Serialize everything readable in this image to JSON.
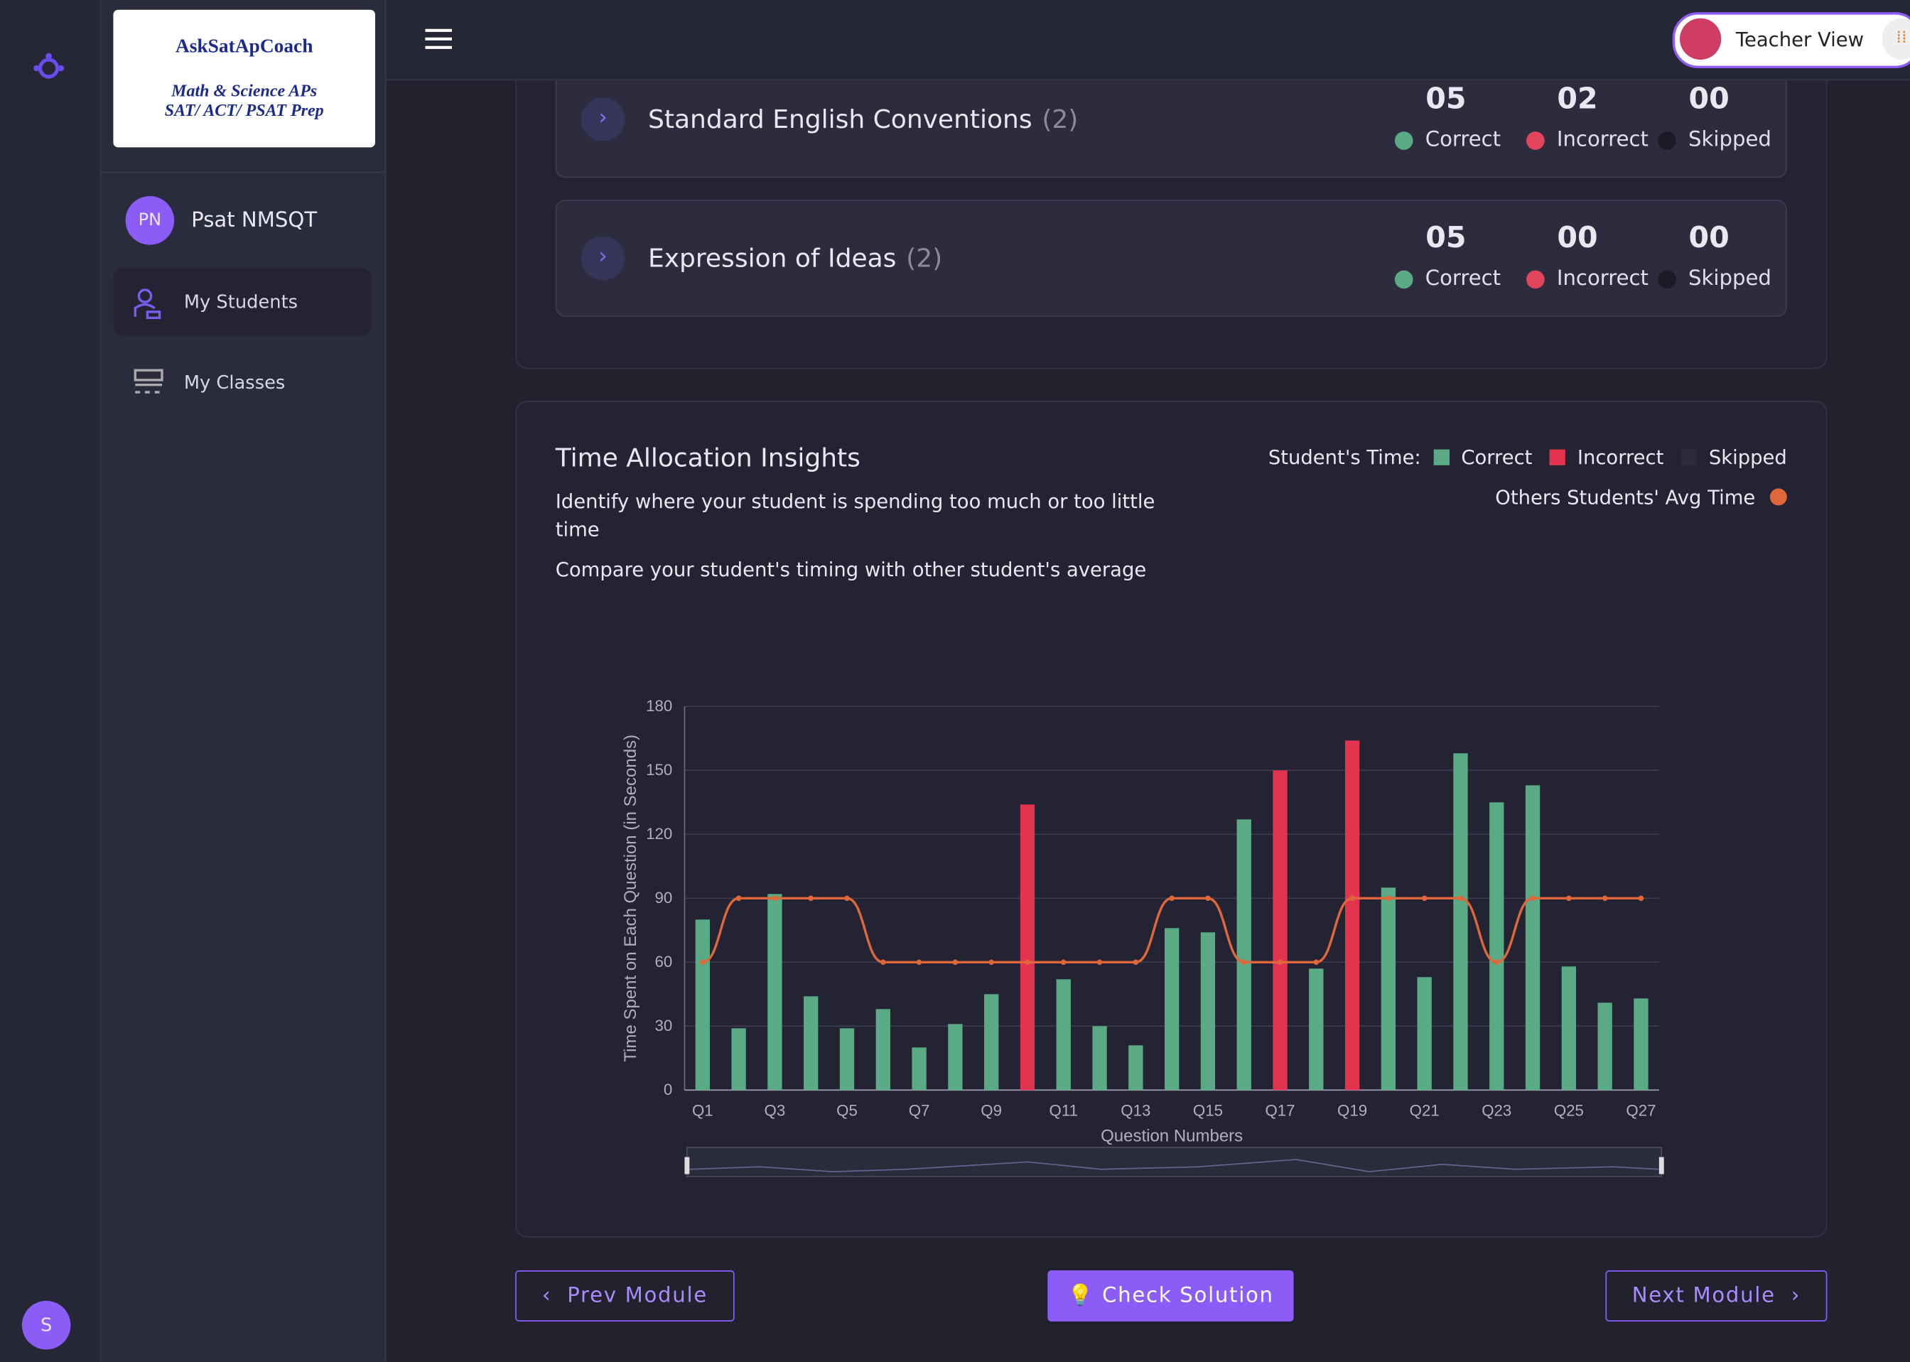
{
  "sidebar": {
    "logo": {
      "title": "AskSatApCoach",
      "line1": "Math & Science APs",
      "line2": "SAT/ ACT/ PSAT Prep"
    },
    "profile": {
      "initials": "PN",
      "name": "Psat NMSQT"
    },
    "menu": [
      "My Students",
      "My Classes"
    ],
    "user_initial": "S"
  },
  "header": {
    "view": "Teacher View"
  },
  "stat_labels": {
    "correct": "Correct",
    "incorrect": "Incorrect",
    "skipped": "Skipped"
  },
  "sections": [
    {
      "title": "Standard English Conventions",
      "count": "(2)",
      "correct": "05",
      "incorrect": "02",
      "skipped": "00"
    },
    {
      "title": "Expression of Ideas",
      "count": "(2)",
      "correct": "05",
      "incorrect": "00",
      "skipped": "00"
    }
  ],
  "insights": {
    "title": "Time Allocation Insights",
    "desc1": "Identify where your student is spending too much or too little time",
    "desc2": "Compare your student's timing with other student's average"
  },
  "chart_data": {
    "type": "bar",
    "legend_title": "Student's Time:",
    "x_label": "Question Numbers",
    "y_label": "Time Spent on Each Question (in Seconds)",
    "categories": [
      "Q1",
      null,
      "Q3",
      null,
      "Q5",
      null,
      "Q7",
      null,
      "Q9",
      null,
      "Q11",
      null,
      "Q13",
      null,
      "Q15",
      null,
      "Q17",
      null,
      "Q19",
      null,
      "Q21",
      null,
      "Q23",
      null,
      "Q25",
      null,
      "Q27"
    ],
    "series": [
      {
        "name": "Correct",
        "color": "#5aab85",
        "values": [
          80,
          29,
          92,
          44,
          29,
          38,
          20,
          31,
          45,
          null,
          52,
          30,
          21,
          76,
          74,
          127,
          null,
          57,
          null,
          95,
          53,
          158,
          135,
          143,
          58,
          41,
          43
        ]
      },
      {
        "name": "Incorrect",
        "color": "#e2334f",
        "values": [
          null,
          null,
          null,
          null,
          null,
          null,
          null,
          null,
          null,
          134,
          null,
          null,
          null,
          null,
          null,
          null,
          150,
          null,
          164,
          null,
          null,
          null,
          null,
          null,
          null,
          null,
          null
        ]
      },
      {
        "name": "Skipped",
        "color": "#2b2b3b",
        "values": [
          null,
          null,
          null,
          null,
          null,
          null,
          null,
          null,
          null,
          null,
          null,
          null,
          null,
          null,
          null,
          null,
          null,
          null,
          null,
          null,
          null,
          null,
          null,
          null,
          null,
          null,
          null
        ]
      },
      {
        "name": "Others Students' Avg Time",
        "type": "line",
        "color": "#e0673a",
        "values": [
          60,
          90,
          90,
          90,
          90,
          60,
          60,
          60,
          60,
          60,
          60,
          60,
          60,
          90,
          90,
          60,
          60,
          60,
          90,
          90,
          90,
          90,
          60,
          90,
          90,
          90,
          90
        ]
      }
    ],
    "ylim": [
      0,
      180
    ],
    "yticks": [
      0,
      30,
      60,
      90,
      120,
      150,
      180
    ],
    "grid": true
  },
  "buttons": {
    "prev": "Prev Module",
    "check": "Check Solution",
    "next": "Next Module"
  }
}
